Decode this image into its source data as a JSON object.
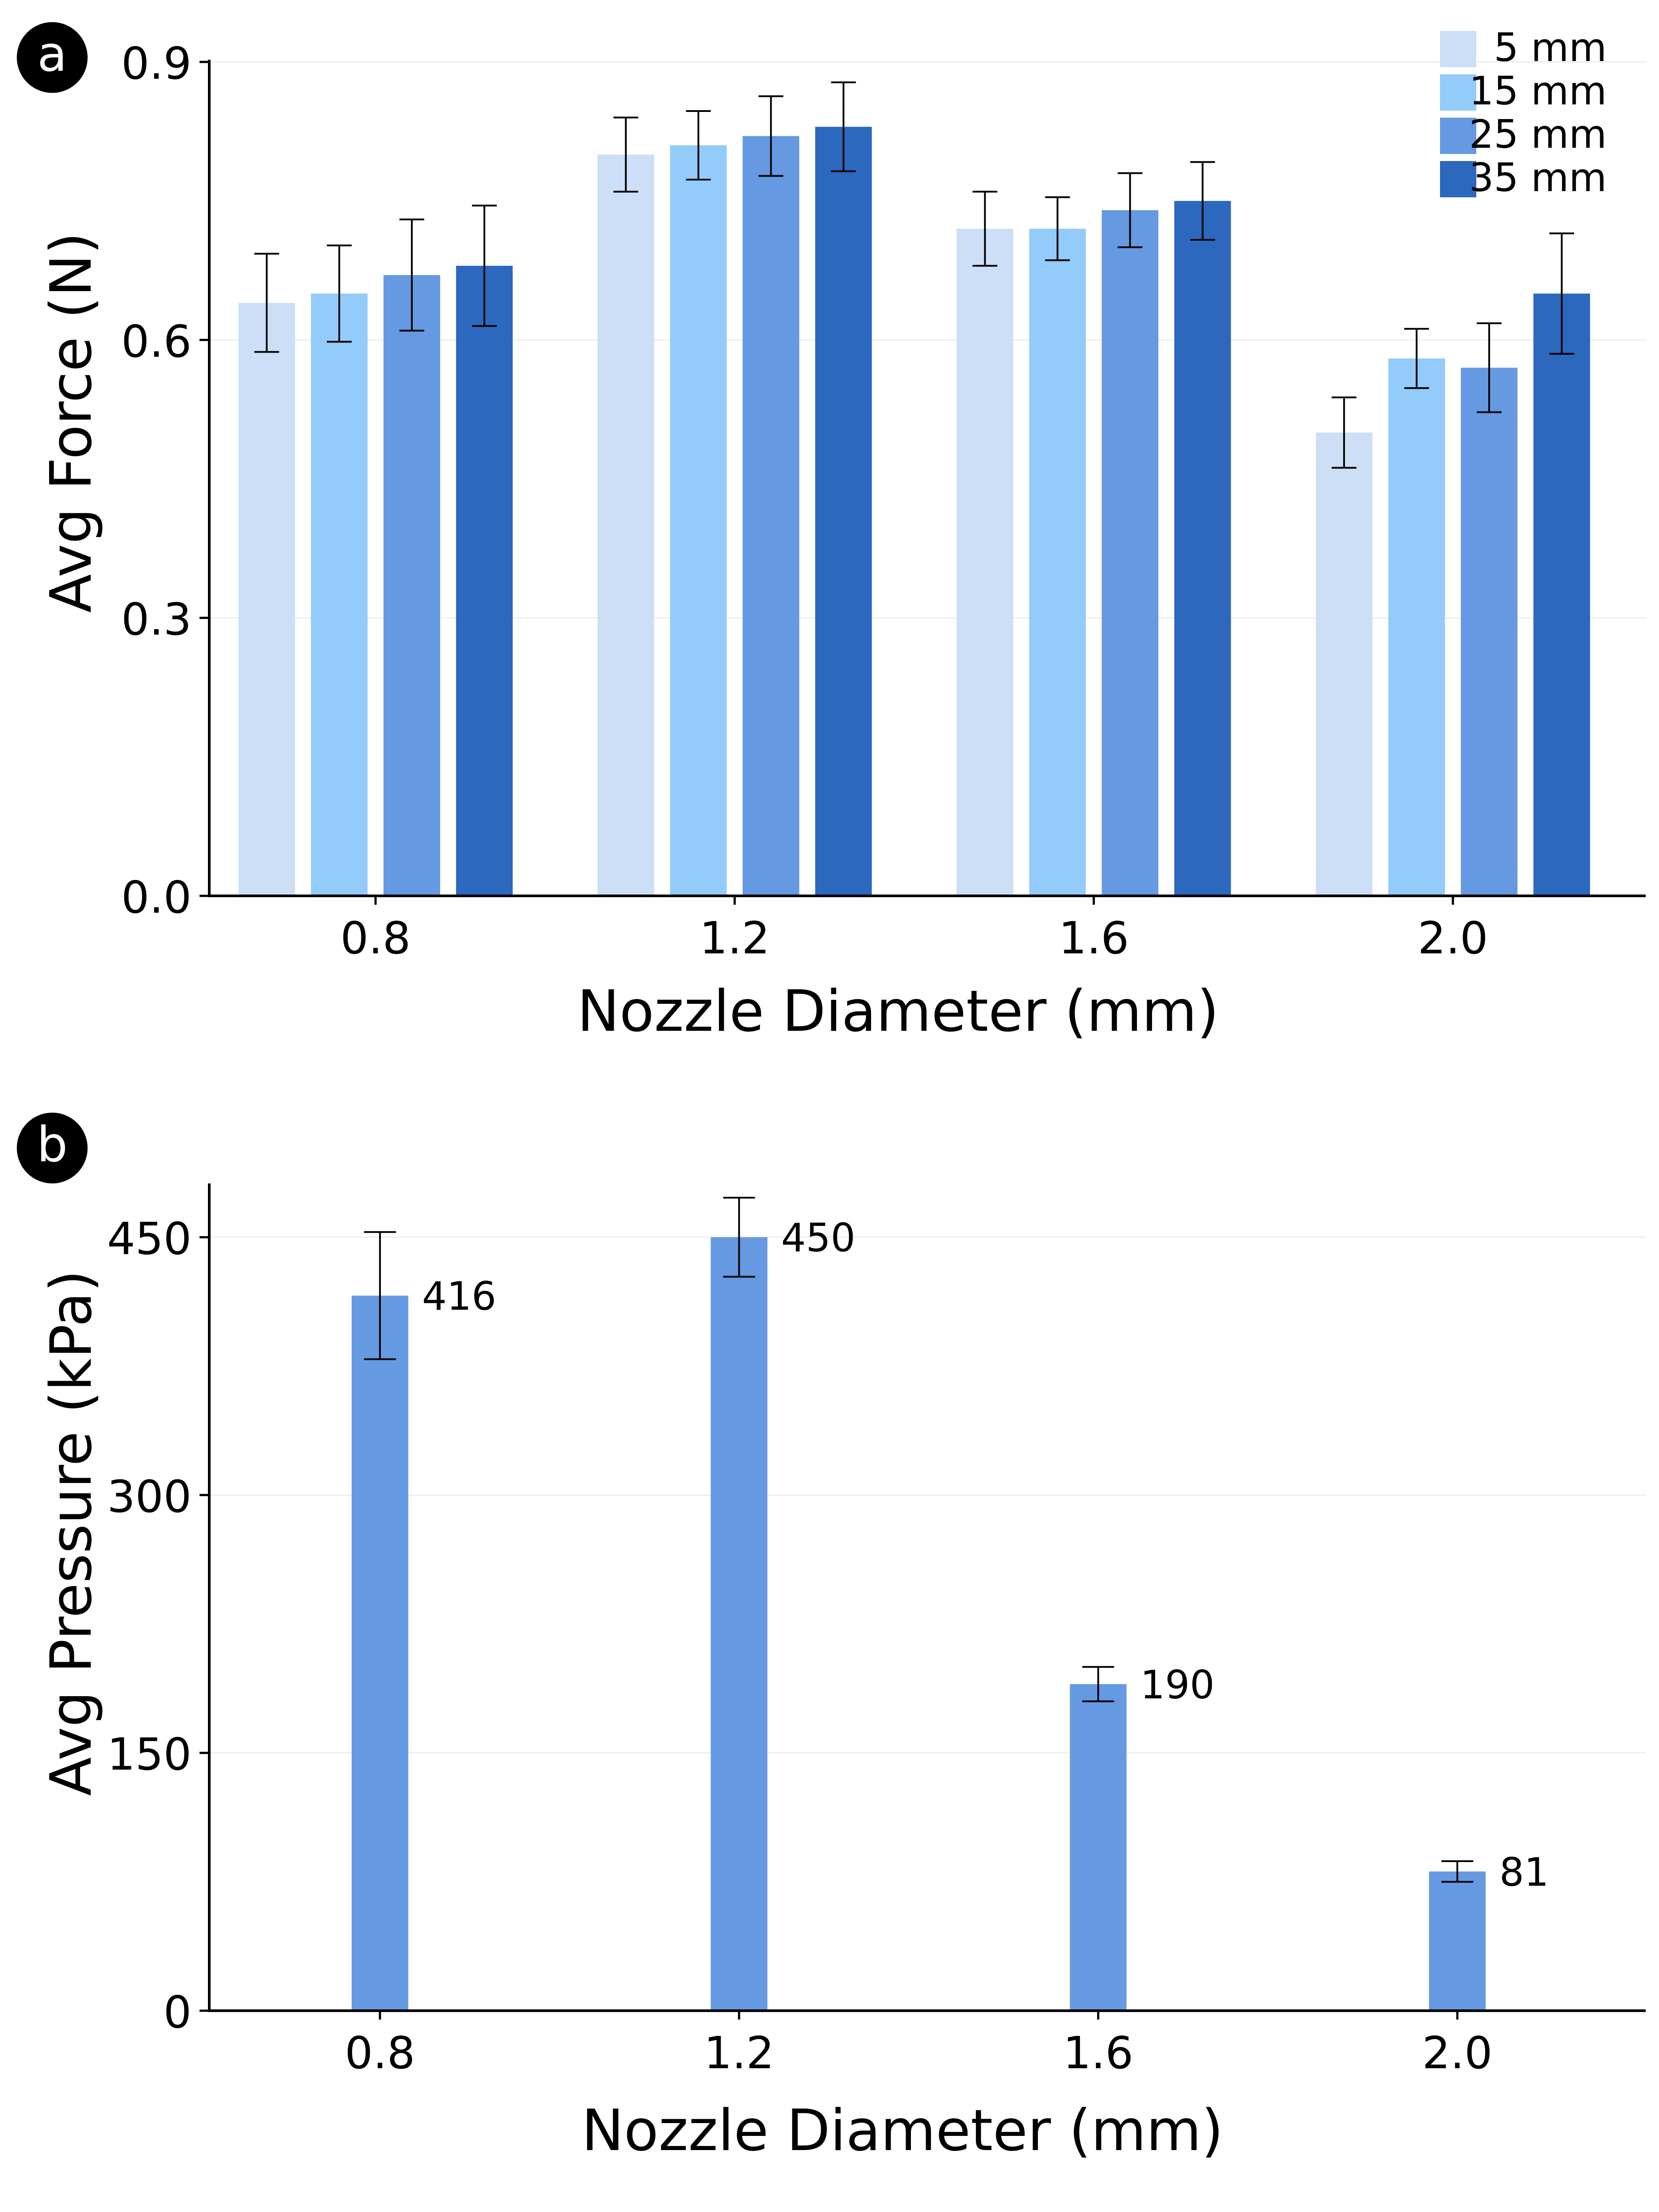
{
  "panel_a_label": "a",
  "panel_b_label": "b",
  "chart_data": [
    {
      "type": "bar",
      "panel": "a",
      "xlabel": "Nozzle Diameter (mm)",
      "ylabel": "Avg Force (N)",
      "categories": [
        "0.8",
        "1.2",
        "1.6",
        "2.0"
      ],
      "ylim": [
        0,
        0.9
      ],
      "yticks": [
        "0.0",
        "0.3",
        "0.6",
        "0.9"
      ],
      "grid": true,
      "legend_position": "top-right",
      "series": [
        {
          "name": "5 mm",
          "color": "#cddff7",
          "values": [
            0.64,
            0.8,
            0.72,
            0.5
          ],
          "errors": [
            0.053,
            0.04,
            0.04,
            0.038
          ]
        },
        {
          "name": "15 mm",
          "color": "#93cbfa",
          "values": [
            0.65,
            0.81,
            0.72,
            0.58
          ],
          "errors": [
            0.052,
            0.037,
            0.034,
            0.032
          ]
        },
        {
          "name": "25 mm",
          "color": "#6599e2",
          "values": [
            0.67,
            0.82,
            0.74,
            0.57
          ],
          "errors": [
            0.06,
            0.043,
            0.04,
            0.048
          ]
        },
        {
          "name": "35 mm",
          "color": "#2b68be",
          "values": [
            0.68,
            0.83,
            0.75,
            0.65
          ],
          "errors": [
            0.065,
            0.048,
            0.042,
            0.065
          ]
        }
      ]
    },
    {
      "type": "bar",
      "panel": "b",
      "xlabel": "Nozzle Diameter (mm)",
      "ylabel": "Avg Pressure (kPa)",
      "categories": [
        "0.8",
        "1.2",
        "1.6",
        "2.0"
      ],
      "ylim": [
        0,
        480
      ],
      "yticks": [
        "0",
        "150",
        "300",
        "450"
      ],
      "grid": true,
      "color": "#6599e2",
      "values": [
        416,
        450,
        190,
        81
      ],
      "errors": [
        37,
        23,
        10,
        6
      ],
      "data_labels": [
        "416",
        "450",
        "190",
        "81"
      ]
    }
  ]
}
